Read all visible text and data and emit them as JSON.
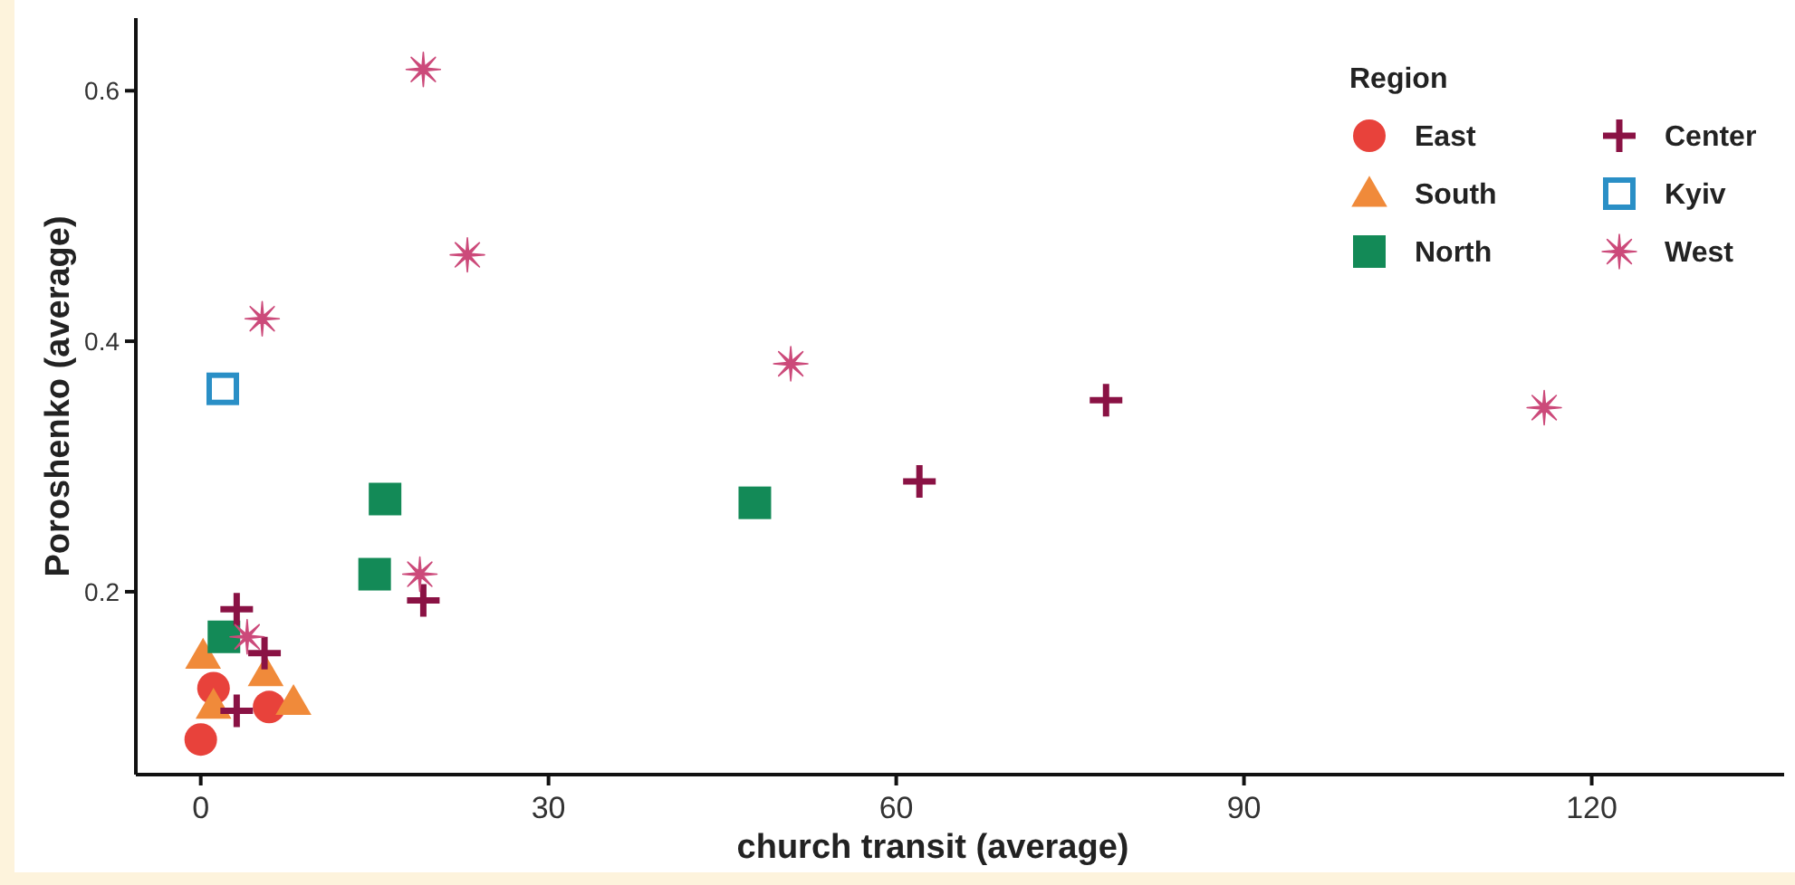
{
  "chart_data": {
    "type": "scatter",
    "xlabel": "church transit (average)",
    "ylabel": "Poroshenko (average)",
    "legend_title": "Region",
    "legend": "top right",
    "grid": false,
    "xlim": [
      -5.6,
      136.6
    ],
    "ylim": [
      0.054,
      0.658
    ],
    "xticks": [
      0,
      30,
      60,
      90,
      120
    ],
    "yticks": [
      0.2,
      0.4,
      0.6
    ],
    "series": [
      {
        "name": "East",
        "color": "#e8423b",
        "marker": "circle",
        "x": [
          0,
          1.1,
          5.9
        ],
        "values": [
          0.082,
          0.123,
          0.108
        ]
      },
      {
        "name": "South",
        "color": "#f08a3a",
        "marker": "triangle",
        "x": [
          0.2,
          5.6,
          1.1,
          8.0
        ],
        "values": [
          0.149,
          0.135,
          0.109,
          0.112
        ]
      },
      {
        "name": "North",
        "color": "#138a57",
        "marker": "square",
        "x": [
          2.0,
          15.0,
          15.9,
          47.8
        ],
        "values": [
          0.164,
          0.214,
          0.274,
          0.271
        ]
      },
      {
        "name": "Center",
        "color": "#8a1244",
        "marker": "cross",
        "x": [
          3.1,
          5.5,
          3.1,
          19.2,
          62.0,
          78.1
        ],
        "values": [
          0.186,
          0.151,
          0.105,
          0.193,
          0.288,
          0.353
        ]
      },
      {
        "name": "Kyiv",
        "color": "#2a8fc6",
        "marker": "square-open",
        "x": [
          1.9
        ],
        "values": [
          0.362
        ]
      },
      {
        "name": "West",
        "color": "#cc4a7a",
        "marker": "star",
        "x": [
          4.0,
          18.9,
          5.3,
          19.2,
          23.0,
          50.9,
          115.9
        ],
        "values": [
          0.164,
          0.214,
          0.418,
          0.617,
          0.469,
          0.382,
          0.347
        ]
      }
    ]
  }
}
